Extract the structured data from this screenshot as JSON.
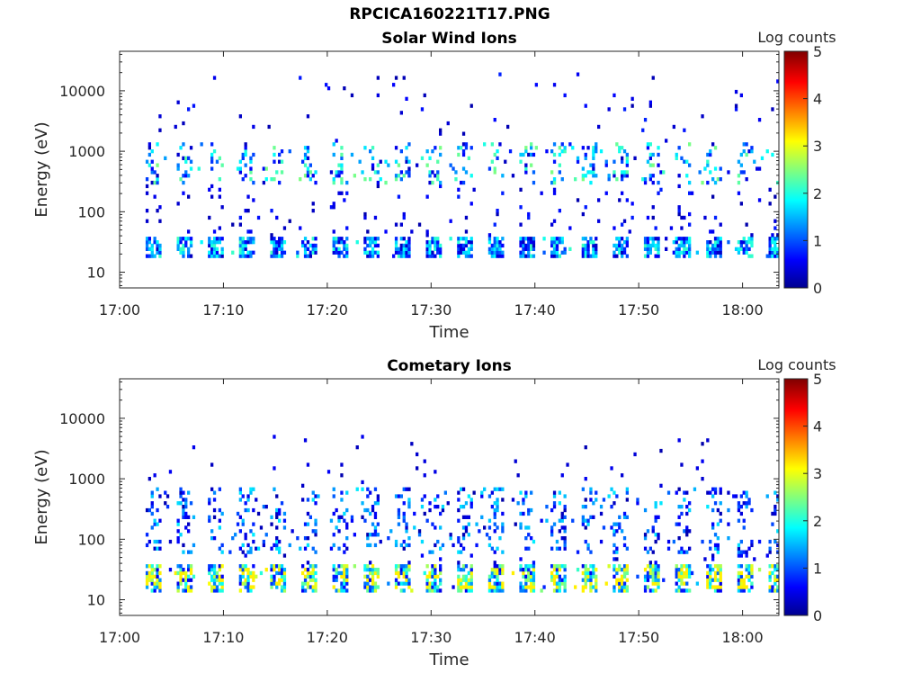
{
  "figure": {
    "title": "RPCICA160221T17.PNG"
  },
  "colormap": {
    "name": "jet",
    "stops": [
      "#00008f",
      "#0000ff",
      "#00ffff",
      "#ffff00",
      "#ff0000",
      "#800000"
    ]
  },
  "chart_data": [
    {
      "type": "heatmap",
      "title": "Solar Wind Ions",
      "xlabel": "Time",
      "ylabel": "Energy (eV)",
      "colorbar_label": "Log counts",
      "colorbar_ticks": [
        "0",
        "1",
        "2",
        "3",
        "4",
        "5"
      ],
      "clim": [
        0,
        5
      ],
      "x_ticks": [
        "17:00",
        "17:10",
        "17:20",
        "17:30",
        "17:40",
        "17:50",
        "18:00"
      ],
      "x_tick_minutes": [
        0,
        10,
        20,
        30,
        40,
        50,
        60
      ],
      "xlim_minutes": [
        0,
        63.5
      ],
      "y_ticks": [
        "10",
        "100",
        "1000",
        "10000"
      ],
      "y_tick_values": [
        10,
        100,
        1000,
        10000
      ],
      "ylim": [
        5.5,
        45000
      ],
      "y_scale": "log",
      "data_start_minute": 2.5,
      "data_end_minute": 63.3,
      "features": [
        {
          "label": "low-energy band",
          "energy_range": [
            17,
            38
          ],
          "log_counts_range": [
            0.3,
            2.2
          ],
          "duty": "periodic bursts ~every 3 min"
        },
        {
          "label": "mid-energy band",
          "energy_range": [
            300,
            1500
          ],
          "log_counts_range": [
            0.3,
            2.5
          ]
        },
        {
          "label": "sparse high-energy counts",
          "energy_range": [
            1500,
            20000
          ],
          "log_counts_range": [
            0.2,
            0.8
          ]
        }
      ]
    },
    {
      "type": "heatmap",
      "title": "Cometary Ions",
      "xlabel": "Time",
      "ylabel": "Energy (eV)",
      "colorbar_label": "Log counts",
      "colorbar_ticks": [
        "0",
        "1",
        "2",
        "3",
        "4",
        "5"
      ],
      "clim": [
        0,
        5
      ],
      "x_ticks": [
        "17:00",
        "17:10",
        "17:20",
        "17:30",
        "17:40",
        "17:50",
        "18:00"
      ],
      "x_tick_minutes": [
        0,
        10,
        20,
        30,
        40,
        50,
        60
      ],
      "xlim_minutes": [
        0,
        63.5
      ],
      "y_ticks": [
        "10",
        "100",
        "1000",
        "10000"
      ],
      "y_tick_values": [
        10,
        100,
        1000,
        10000
      ],
      "ylim": [
        5.5,
        45000
      ],
      "y_scale": "log",
      "data_start_minute": 2.5,
      "data_end_minute": 63.3,
      "features": [
        {
          "label": "low-energy band",
          "energy_range": [
            13,
            40
          ],
          "log_counts_range": [
            0.5,
            3.2
          ],
          "duty": "periodic bursts ~every 3 min"
        },
        {
          "label": "mid-energy band",
          "energy_range": [
            60,
            700
          ],
          "log_counts_range": [
            0.2,
            1.8
          ]
        },
        {
          "label": "sparse high-energy counts",
          "energy_range": [
            700,
            5000
          ],
          "log_counts_range": [
            0.2,
            0.6
          ]
        }
      ]
    }
  ]
}
